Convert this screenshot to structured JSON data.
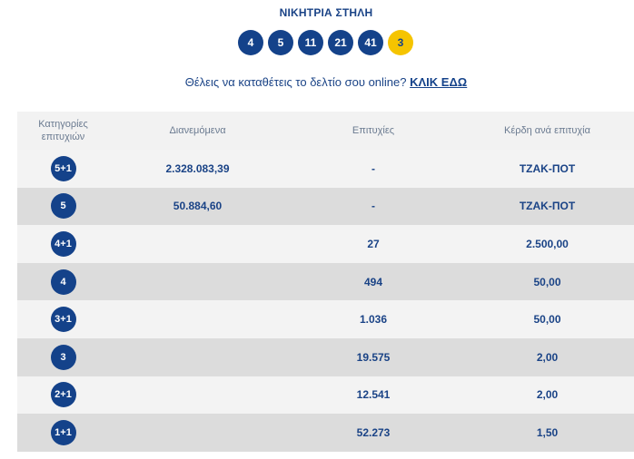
{
  "title": "ΝΙΚΗΤΡΙΑ ΣΤΗΛΗ",
  "winning_numbers": [
    "4",
    "5",
    "11",
    "21",
    "41"
  ],
  "bonus_number": "3",
  "cta": {
    "text": "Θέλεις να καταθέτεις το δελτίο σου online?",
    "link_label": "ΚΛΙΚ ΕΔΩ"
  },
  "table": {
    "headers": {
      "category": "Κατηγορίες επιτυχιών",
      "distributed": "Διανεμόμενα",
      "winners": "Επιτυχίες",
      "prize": "Κέρδη ανά επιτυχία"
    },
    "rows": [
      {
        "category": "5+1",
        "distributed": "2.328.083,39",
        "winners": "-",
        "prize": "ΤΖΑΚ-ΠΟΤ"
      },
      {
        "category": "5",
        "distributed": "50.884,60",
        "winners": "-",
        "prize": "ΤΖΑΚ-ΠΟΤ"
      },
      {
        "category": "4+1",
        "distributed": "",
        "winners": "27",
        "prize": "2.500,00"
      },
      {
        "category": "4",
        "distributed": "",
        "winners": "494",
        "prize": "50,00"
      },
      {
        "category": "3+1",
        "distributed": "",
        "winners": "1.036",
        "prize": "50,00"
      },
      {
        "category": "3",
        "distributed": "",
        "winners": "19.575",
        "prize": "2,00"
      },
      {
        "category": "2+1",
        "distributed": "",
        "winners": "12.541",
        "prize": "2,00"
      },
      {
        "category": "1+1",
        "distributed": "",
        "winners": "52.273",
        "prize": "1,50"
      }
    ]
  },
  "colors": {
    "primary": "#14428a",
    "bonus": "#f5c400",
    "row_light": "#f3f3f3",
    "row_dark": "#dcdcdc"
  }
}
